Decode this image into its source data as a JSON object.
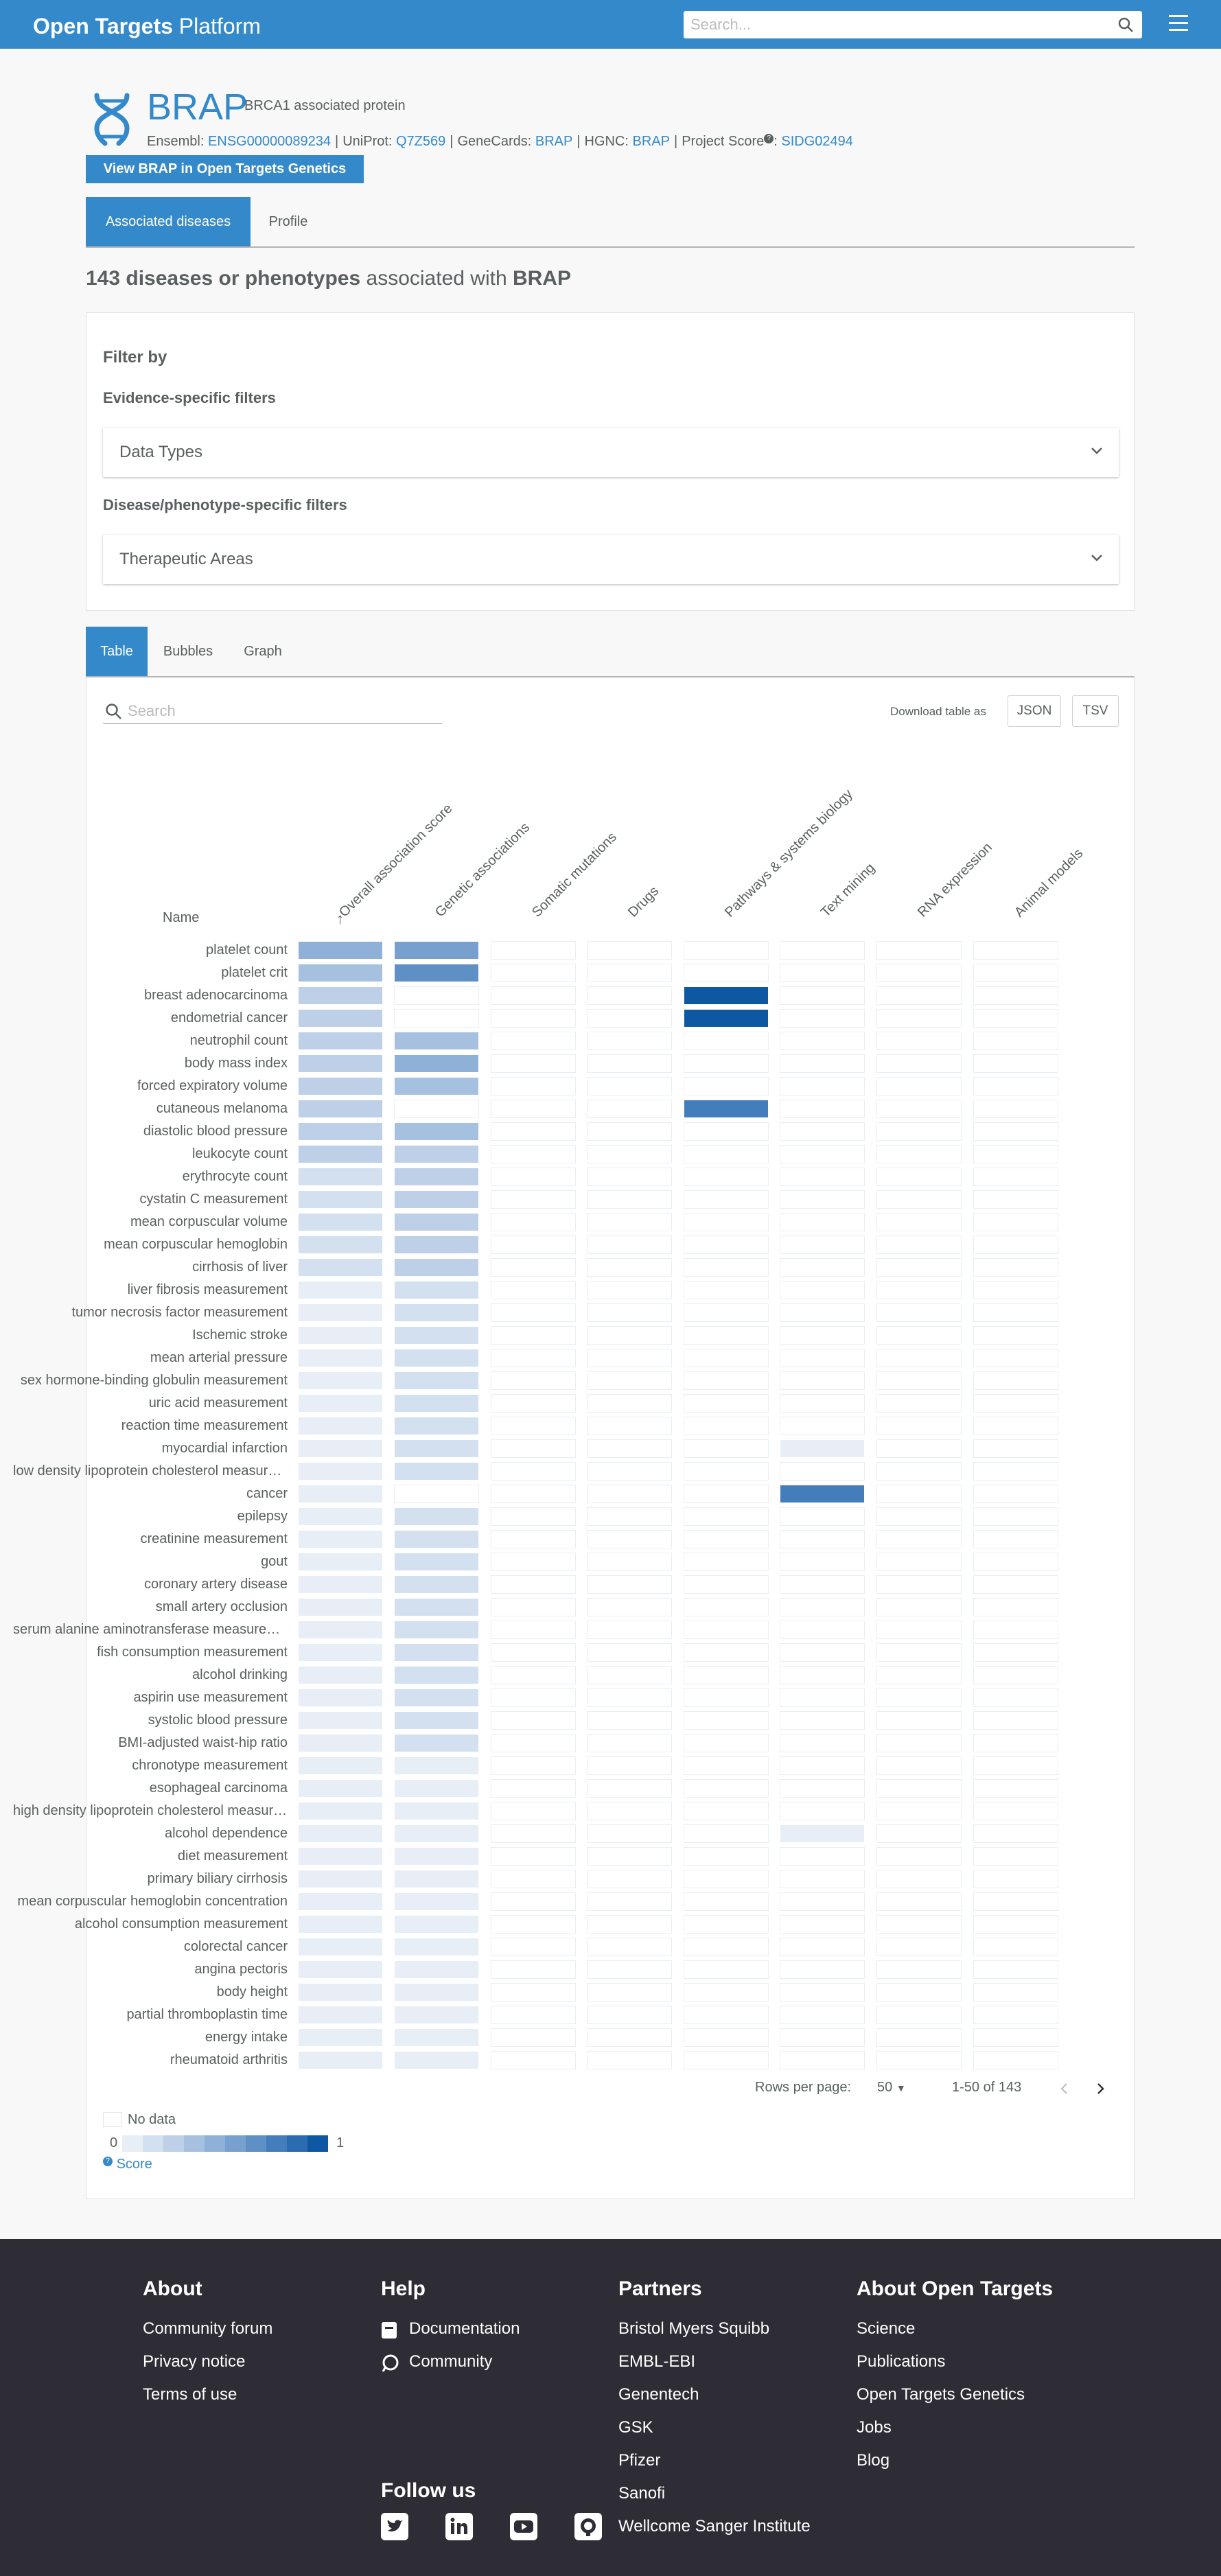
{
  "navbar": {
    "brand_bold": "Open Targets",
    "brand_light": " Platform",
    "search_placeholder": "Search..."
  },
  "target": {
    "symbol": "BRAP",
    "name": "BRCA1 associated protein",
    "xrefs": {
      "ensembl_label": "Ensembl: ",
      "ensembl": "ENSG00000089234",
      "uniprot_label": "UniProt: ",
      "uniprot": "Q7Z569",
      "genecards_label": "GeneCards: ",
      "genecards": "BRAP",
      "hgnc_label": "HGNC: ",
      "hgnc": "BRAP",
      "projectscore_label": "Project Score",
      "projectscore": "SIDG02494"
    },
    "genetics_button": "View BRAP in Open Targets Genetics"
  },
  "tabs": [
    "Associated diseases",
    "Profile"
  ],
  "heading": {
    "count_text": "143 diseases or phenotypes",
    "middle": " associated with ",
    "symbol": "BRAP"
  },
  "filters": {
    "title": "Filter by",
    "evidence_label": "Evidence-specific filters",
    "data_types": "Data Types",
    "disease_label": "Disease/phenotype-specific filters",
    "therapeutic_areas": "Therapeutic Areas"
  },
  "view_tabs": [
    "Table",
    "Bubbles",
    "Graph"
  ],
  "table": {
    "search_placeholder": "Search",
    "download_label": "Download table as",
    "json_button": "JSON",
    "tsv_button": "TSV",
    "name_header": "Name",
    "sort_arrow": "↑",
    "columns": [
      "Overall association score",
      "Genetic associations",
      "Somatic mutations",
      "Drugs",
      "Pathways & systems biology",
      "Text mining",
      "RNA expression",
      "Animal models"
    ],
    "palette": [
      "#ffffff",
      "#e8eef6",
      "#d3e0ef",
      "#bdd0e7",
      "#a6c1df",
      "#8fb1d7",
      "#77a0ce",
      "#5e8fc5",
      "#437dbc",
      "#2a6bb1",
      "#0d57a3"
    ],
    "rows": [
      {
        "name": "platelet count",
        "s": [
          5,
          6,
          0,
          0,
          0,
          0,
          0,
          0
        ]
      },
      {
        "name": "platelet crit",
        "s": [
          4,
          7,
          0,
          0,
          0,
          0,
          0,
          0
        ]
      },
      {
        "name": "breast adenocarcinoma",
        "s": [
          3,
          0,
          0,
          0,
          10,
          0,
          0,
          0
        ]
      },
      {
        "name": "endometrial cancer",
        "s": [
          3,
          0,
          0,
          0,
          10,
          0,
          0,
          0
        ]
      },
      {
        "name": "neutrophil count",
        "s": [
          3,
          4,
          0,
          0,
          0,
          0,
          0,
          0
        ]
      },
      {
        "name": "body mass index",
        "s": [
          3,
          5,
          0,
          0,
          0,
          0,
          0,
          0
        ]
      },
      {
        "name": "forced expiratory volume",
        "s": [
          3,
          4,
          0,
          0,
          0,
          0,
          0,
          0
        ]
      },
      {
        "name": "cutaneous melanoma",
        "s": [
          3,
          0,
          0,
          0,
          8,
          0,
          0,
          0
        ]
      },
      {
        "name": "diastolic blood pressure",
        "s": [
          3,
          4,
          0,
          0,
          0,
          0,
          0,
          0
        ]
      },
      {
        "name": "leukocyte count",
        "s": [
          3,
          3,
          0,
          0,
          0,
          0,
          0,
          0
        ]
      },
      {
        "name": "erythrocyte count",
        "s": [
          2,
          3,
          0,
          0,
          0,
          0,
          0,
          0
        ]
      },
      {
        "name": "cystatin C measurement",
        "s": [
          2,
          3,
          0,
          0,
          0,
          0,
          0,
          0
        ]
      },
      {
        "name": "mean corpuscular volume",
        "s": [
          2,
          3,
          0,
          0,
          0,
          0,
          0,
          0
        ]
      },
      {
        "name": "mean corpuscular hemoglobin",
        "s": [
          2,
          3,
          0,
          0,
          0,
          0,
          0,
          0
        ]
      },
      {
        "name": "cirrhosis of liver",
        "s": [
          2,
          3,
          0,
          0,
          0,
          0,
          0,
          0
        ]
      },
      {
        "name": "liver fibrosis measurement",
        "s": [
          1,
          2,
          0,
          0,
          0,
          0,
          0,
          0
        ]
      },
      {
        "name": "tumor necrosis factor measurement",
        "s": [
          1,
          2,
          0,
          0,
          0,
          0,
          0,
          0
        ]
      },
      {
        "name": "Ischemic stroke",
        "s": [
          1,
          2,
          0,
          0,
          0,
          0,
          0,
          0
        ]
      },
      {
        "name": "mean arterial pressure",
        "s": [
          1,
          2,
          0,
          0,
          0,
          0,
          0,
          0
        ]
      },
      {
        "name": "sex hormone-binding globulin measurement",
        "s": [
          1,
          2,
          0,
          0,
          0,
          0,
          0,
          0
        ]
      },
      {
        "name": "uric acid measurement",
        "s": [
          1,
          2,
          0,
          0,
          0,
          0,
          0,
          0
        ]
      },
      {
        "name": "reaction time measurement",
        "s": [
          1,
          2,
          0,
          0,
          0,
          0,
          0,
          0
        ]
      },
      {
        "name": "myocardial infarction",
        "s": [
          1,
          2,
          0,
          0,
          0,
          1,
          0,
          0
        ]
      },
      {
        "name": "low density lipoprotein cholesterol measurement",
        "s": [
          1,
          2,
          0,
          0,
          0,
          0,
          0,
          0
        ]
      },
      {
        "name": "cancer",
        "s": [
          1,
          0,
          0,
          0,
          0,
          8,
          0,
          0
        ]
      },
      {
        "name": "epilepsy",
        "s": [
          1,
          2,
          0,
          0,
          0,
          0,
          0,
          0
        ]
      },
      {
        "name": "creatinine measurement",
        "s": [
          1,
          2,
          0,
          0,
          0,
          0,
          0,
          0
        ]
      },
      {
        "name": "gout",
        "s": [
          1,
          2,
          0,
          0,
          0,
          0,
          0,
          0
        ]
      },
      {
        "name": "coronary artery disease",
        "s": [
          1,
          2,
          0,
          0,
          0,
          0,
          0,
          0
        ]
      },
      {
        "name": "small artery occlusion",
        "s": [
          1,
          2,
          0,
          0,
          0,
          0,
          0,
          0
        ]
      },
      {
        "name": "serum alanine aminotransferase measurement",
        "s": [
          1,
          2,
          0,
          0,
          0,
          0,
          0,
          0
        ]
      },
      {
        "name": "fish consumption measurement",
        "s": [
          1,
          2,
          0,
          0,
          0,
          0,
          0,
          0
        ]
      },
      {
        "name": "alcohol drinking",
        "s": [
          1,
          2,
          0,
          0,
          0,
          0,
          0,
          0
        ]
      },
      {
        "name": "aspirin use measurement",
        "s": [
          1,
          2,
          0,
          0,
          0,
          0,
          0,
          0
        ]
      },
      {
        "name": "systolic blood pressure",
        "s": [
          1,
          2,
          0,
          0,
          0,
          0,
          0,
          0
        ]
      },
      {
        "name": "BMI-adjusted waist-hip ratio",
        "s": [
          1,
          2,
          0,
          0,
          0,
          0,
          0,
          0
        ]
      },
      {
        "name": "chronotype measurement",
        "s": [
          1,
          1,
          0,
          0,
          0,
          0,
          0,
          0
        ]
      },
      {
        "name": "esophageal carcinoma",
        "s": [
          1,
          1,
          0,
          0,
          0,
          0,
          0,
          0
        ]
      },
      {
        "name": "high density lipoprotein cholesterol measurement",
        "s": [
          1,
          1,
          0,
          0,
          0,
          0,
          0,
          0
        ]
      },
      {
        "name": "alcohol dependence",
        "s": [
          1,
          1,
          0,
          0,
          0,
          1,
          0,
          0
        ]
      },
      {
        "name": "diet measurement",
        "s": [
          1,
          1,
          0,
          0,
          0,
          0,
          0,
          0
        ]
      },
      {
        "name": "primary biliary cirrhosis",
        "s": [
          1,
          1,
          0,
          0,
          0,
          0,
          0,
          0
        ]
      },
      {
        "name": "mean corpuscular hemoglobin concentration",
        "s": [
          1,
          1,
          0,
          0,
          0,
          0,
          0,
          0
        ]
      },
      {
        "name": "alcohol consumption measurement",
        "s": [
          1,
          1,
          0,
          0,
          0,
          0,
          0,
          0
        ]
      },
      {
        "name": "colorectal cancer",
        "s": [
          1,
          1,
          0,
          0,
          0,
          0,
          0,
          0
        ]
      },
      {
        "name": "angina pectoris",
        "s": [
          1,
          1,
          0,
          0,
          0,
          0,
          0,
          0
        ]
      },
      {
        "name": "body height",
        "s": [
          1,
          1,
          0,
          0,
          0,
          0,
          0,
          0
        ]
      },
      {
        "name": "partial thromboplastin time",
        "s": [
          1,
          1,
          0,
          0,
          0,
          0,
          0,
          0
        ]
      },
      {
        "name": "energy intake",
        "s": [
          1,
          1,
          0,
          0,
          0,
          0,
          0,
          0
        ]
      },
      {
        "name": "rheumatoid arthritis",
        "s": [
          1,
          1,
          0,
          0,
          0,
          0,
          0,
          0
        ]
      }
    ],
    "rows_per_page_label": "Rows per page:",
    "rows_per_page": "50",
    "range": "1-50 of 143"
  },
  "legend": {
    "no_data": "No data",
    "min": "0",
    "max": "1",
    "score_link": "Score"
  },
  "footer": {
    "about": {
      "title": "About",
      "links": [
        "Community forum",
        "Privacy notice",
        "Terms of use"
      ]
    },
    "help": {
      "title": "Help",
      "links": [
        "Documentation",
        "Community"
      ]
    },
    "follow_title": "Follow us",
    "partners": {
      "title": "Partners",
      "links": [
        "Bristol Myers Squibb",
        "EMBL-EBI",
        "Genentech",
        "GSK",
        "Pfizer",
        "Sanofi",
        "Wellcome Sanger Institute"
      ]
    },
    "about_ot": {
      "title": "About Open Targets",
      "links": [
        "Science",
        "Publications",
        "Open Targets Genetics",
        "Jobs",
        "Blog"
      ]
    }
  }
}
